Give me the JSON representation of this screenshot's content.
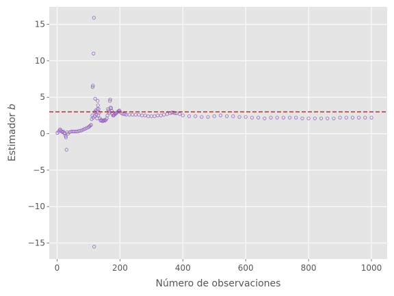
{
  "chart_data": {
    "type": "scatter",
    "title": "",
    "xlabel": "Número de observaciones",
    "ylabel_prefix": "Estimador ",
    "ylabel_var": "b",
    "xlim": [
      -25,
      1050
    ],
    "ylim": [
      -17.2,
      17.4
    ],
    "xticks": [
      0,
      200,
      400,
      600,
      800,
      1000
    ],
    "yticks": [
      -15,
      -10,
      -5,
      0,
      5,
      10,
      15
    ],
    "xtick_labels": [
      "0",
      "200",
      "400",
      "600",
      "800",
      "1000"
    ],
    "ytick_labels": [
      "−15",
      "−10",
      "−5",
      "0",
      "5",
      "10",
      "15"
    ],
    "grid": true,
    "reference_line": {
      "y": 3.0,
      "style": "dashed",
      "color": "#e41a1c"
    },
    "series": [
      {
        "marker": "hollow-circle",
        "color": "#9467bd",
        "points": [
          [
            1,
            0.1
          ],
          [
            5,
            0.3
          ],
          [
            8,
            0.5
          ],
          [
            10,
            0.6
          ],
          [
            12,
            0.4
          ],
          [
            15,
            0.3
          ],
          [
            18,
            0.2
          ],
          [
            20,
            0.3
          ],
          [
            22,
            0.1
          ],
          [
            25,
            0.0
          ],
          [
            27,
            -0.3
          ],
          [
            28,
            -0.5
          ],
          [
            30,
            -2.2
          ],
          [
            32,
            0.2
          ],
          [
            35,
            0.0
          ],
          [
            40,
            0.2
          ],
          [
            45,
            0.3
          ],
          [
            50,
            0.3
          ],
          [
            55,
            0.3
          ],
          [
            60,
            0.3
          ],
          [
            65,
            0.3
          ],
          [
            70,
            0.4
          ],
          [
            75,
            0.4
          ],
          [
            80,
            0.5
          ],
          [
            85,
            0.6
          ],
          [
            90,
            0.7
          ],
          [
            95,
            0.8
          ],
          [
            100,
            0.9
          ],
          [
            103,
            1.0
          ],
          [
            105,
            1.1
          ],
          [
            108,
            1.2
          ],
          [
            110,
            2.0
          ],
          [
            112,
            2.5
          ],
          [
            113,
            6.4
          ],
          [
            114,
            6.6
          ],
          [
            115,
            2.2
          ],
          [
            116,
            11.0
          ],
          [
            117,
            15.9
          ],
          [
            118,
            -15.5
          ],
          [
            119,
            2.4
          ],
          [
            120,
            3.0
          ],
          [
            121,
            4.8
          ],
          [
            122,
            2.9
          ],
          [
            123,
            3.2
          ],
          [
            125,
            2.6
          ],
          [
            127,
            2.1
          ],
          [
            128,
            3.4
          ],
          [
            129,
            4.5
          ],
          [
            130,
            3.9
          ],
          [
            131,
            2.5
          ],
          [
            132,
            3.4
          ],
          [
            134,
            2.9
          ],
          [
            136,
            2.1
          ],
          [
            138,
            1.8
          ],
          [
            140,
            1.9
          ],
          [
            142,
            1.8
          ],
          [
            145,
            1.7
          ],
          [
            148,
            1.8
          ],
          [
            150,
            1.9
          ],
          [
            152,
            1.8
          ],
          [
            155,
            1.9
          ],
          [
            158,
            2.1
          ],
          [
            160,
            2.5
          ],
          [
            162,
            3.4
          ],
          [
            163,
            3.2
          ],
          [
            165,
            2.8
          ],
          [
            166,
            3.0
          ],
          [
            168,
            4.5
          ],
          [
            169,
            4.7
          ],
          [
            170,
            3.6
          ],
          [
            172,
            3.5
          ],
          [
            174,
            3.1
          ],
          [
            176,
            2.7
          ],
          [
            178,
            2.5
          ],
          [
            180,
            2.5
          ],
          [
            182,
            2.6
          ],
          [
            185,
            2.7
          ],
          [
            188,
            2.8
          ],
          [
            190,
            2.9
          ],
          [
            193,
            3.0
          ],
          [
            196,
            3.1
          ],
          [
            198,
            3.2
          ],
          [
            200,
            3.0
          ],
          [
            205,
            2.8
          ],
          [
            210,
            2.7
          ],
          [
            215,
            2.7
          ],
          [
            220,
            2.6
          ],
          [
            230,
            2.6
          ],
          [
            240,
            2.6
          ],
          [
            250,
            2.6
          ],
          [
            260,
            2.6
          ],
          [
            270,
            2.5
          ],
          [
            280,
            2.5
          ],
          [
            290,
            2.4
          ],
          [
            300,
            2.4
          ],
          [
            310,
            2.4
          ],
          [
            320,
            2.5
          ],
          [
            330,
            2.5
          ],
          [
            340,
            2.6
          ],
          [
            350,
            2.7
          ],
          [
            360,
            2.8
          ],
          [
            365,
            2.9
          ],
          [
            370,
            2.9
          ],
          [
            375,
            2.8
          ],
          [
            380,
            2.8
          ],
          [
            390,
            2.7
          ],
          [
            400,
            2.5
          ],
          [
            420,
            2.4
          ],
          [
            440,
            2.4
          ],
          [
            460,
            2.3
          ],
          [
            480,
            2.3
          ],
          [
            500,
            2.4
          ],
          [
            520,
            2.5
          ],
          [
            540,
            2.4
          ],
          [
            560,
            2.4
          ],
          [
            580,
            2.3
          ],
          [
            600,
            2.3
          ],
          [
            620,
            2.2
          ],
          [
            640,
            2.2
          ],
          [
            660,
            2.1
          ],
          [
            680,
            2.2
          ],
          [
            700,
            2.2
          ],
          [
            720,
            2.2
          ],
          [
            740,
            2.2
          ],
          [
            760,
            2.2
          ],
          [
            780,
            2.1
          ],
          [
            800,
            2.1
          ],
          [
            820,
            2.1
          ],
          [
            840,
            2.1
          ],
          [
            860,
            2.1
          ],
          [
            880,
            2.1
          ],
          [
            900,
            2.2
          ],
          [
            920,
            2.2
          ],
          [
            940,
            2.2
          ],
          [
            960,
            2.2
          ],
          [
            980,
            2.2
          ],
          [
            1000,
            2.2
          ]
        ]
      }
    ]
  }
}
